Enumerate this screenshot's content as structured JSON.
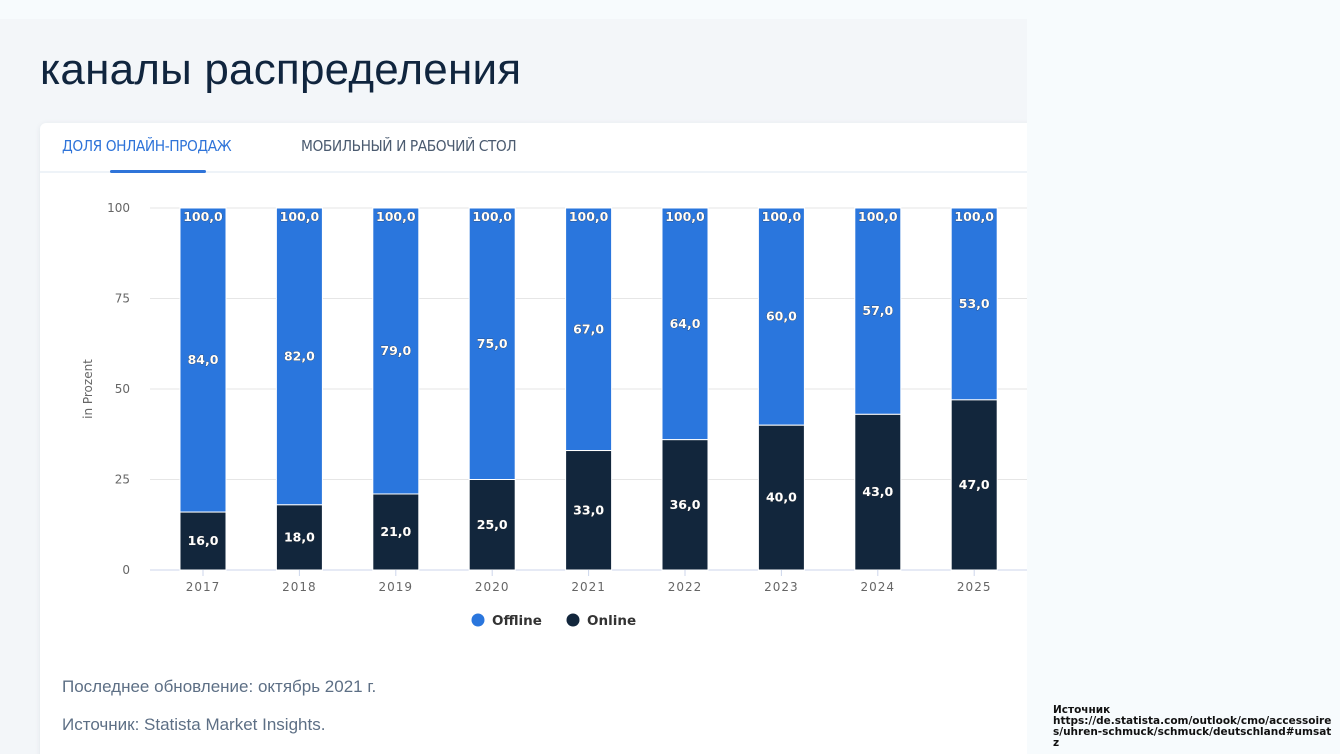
{
  "page": {
    "title": "каналы распределения"
  },
  "tabs": [
    {
      "label": "ДОЛЯ ОНЛАЙН-ПРОДАЖ",
      "active": true
    },
    {
      "label": "МОБИЛЬНЫЙ И РАБОЧИЙ СТОЛ",
      "active": false
    }
  ],
  "footer": {
    "last_update": "Последнее обновление: октябрь 2021 г.",
    "source": "Источник: Statista Market Insights."
  },
  "side_note": {
    "label": "Источник",
    "url": "https://de.statista.com/outlook/cmo/accessoires/uhren-schmuck/schmuck/deutschland#umsatz"
  },
  "colors": {
    "offline": "#2a76dd",
    "online": "#12263c",
    "accent": "#2f74d9"
  },
  "chart_data": {
    "type": "bar",
    "stacked": true,
    "title": "",
    "xlabel": "",
    "ylabel": "in Prozent",
    "categories": [
      "2017",
      "2018",
      "2019",
      "2020",
      "2021",
      "2022",
      "2023",
      "2024",
      "2025"
    ],
    "series": [
      {
        "name": "Online",
        "values": [
          16,
          18,
          21,
          25,
          33,
          36,
          40,
          43,
          47
        ]
      },
      {
        "name": "Offline",
        "values": [
          84,
          82,
          79,
          75,
          67,
          64,
          60,
          57,
          53
        ]
      }
    ],
    "totals": [
      100,
      100,
      100,
      100,
      100,
      100,
      100,
      100,
      100
    ],
    "data_labels": {
      "Online": [
        "16,0",
        "18,0",
        "21,0",
        "25,0",
        "33,0",
        "36,0",
        "40,0",
        "43,0",
        "47,0"
      ],
      "Offline": [
        "84,0",
        "82,0",
        "79,0",
        "75,0",
        "67,0",
        "64,0",
        "60,0",
        "57,0",
        "53,0"
      ],
      "total": [
        "100,0",
        "100,0",
        "100,0",
        "100,0",
        "100,0",
        "100,0",
        "100,0",
        "100,0",
        "100,0"
      ]
    },
    "yticks": [
      0,
      25,
      50,
      75,
      100
    ],
    "ylim": [
      0,
      100
    ],
    "grid": true,
    "legend": {
      "position": "bottom-center",
      "entries": [
        "Offline",
        "Online"
      ]
    }
  }
}
